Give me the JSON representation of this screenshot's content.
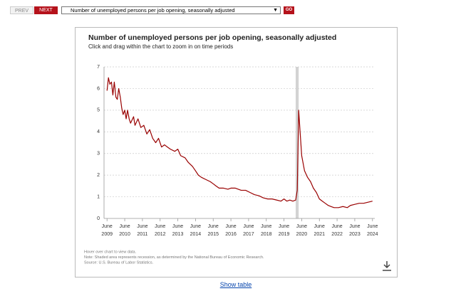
{
  "nav": {
    "prev": "PREV",
    "next": "NEXT",
    "select": "Number of unemployed persons per job opening, seasonally adjusted",
    "go": "GO"
  },
  "chart_data": {
    "type": "line",
    "title": "Number of unemployed persons per job opening, seasonally adjusted",
    "subtitle": "Click and drag within the chart to zoom in on time periods",
    "color": "#990000",
    "x": [
      2009.42,
      2009.5,
      2009.58,
      2009.67,
      2009.75,
      2009.83,
      2009.92,
      2010.0,
      2010.08,
      2010.17,
      2010.25,
      2010.33,
      2010.42,
      2010.5,
      2010.58,
      2010.67,
      2010.75,
      2010.92,
      2011.0,
      2011.17,
      2011.33,
      2011.5,
      2011.67,
      2011.83,
      2012.0,
      2012.17,
      2012.33,
      2012.5,
      2012.67,
      2012.83,
      2013.0,
      2013.25,
      2013.42,
      2013.58,
      2013.83,
      2014.0,
      2014.25,
      2014.42,
      2014.58,
      2014.75,
      2015.0,
      2015.25,
      2015.42,
      2015.58,
      2015.75,
      2016.0,
      2016.25,
      2016.42,
      2016.67,
      2017.0,
      2017.25,
      2017.5,
      2017.75,
      2018.0,
      2018.25,
      2018.5,
      2018.75,
      2019.0,
      2019.25,
      2019.42,
      2019.58,
      2019.75,
      2019.92,
      2020.08,
      2020.17,
      2020.25,
      2020.33,
      2020.42,
      2020.58,
      2020.75,
      2020.92,
      2021.08,
      2021.25,
      2021.42,
      2021.58,
      2021.75,
      2021.92,
      2022.08,
      2022.25,
      2022.5,
      2022.75,
      2023.0,
      2023.17,
      2023.42,
      2023.67,
      2023.92,
      2024.17,
      2024.42
    ],
    "values": [
      5.9,
      6.5,
      6.2,
      6.3,
      5.7,
      6.3,
      5.6,
      5.5,
      6.0,
      5.6,
      5.1,
      4.8,
      5.0,
      4.6,
      5.0,
      4.6,
      4.4,
      4.7,
      4.3,
      4.6,
      4.2,
      4.3,
      3.9,
      4.1,
      3.7,
      3.5,
      3.7,
      3.3,
      3.4,
      3.3,
      3.2,
      3.1,
      3.2,
      2.9,
      2.8,
      2.6,
      2.4,
      2.2,
      2.0,
      1.9,
      1.8,
      1.7,
      1.6,
      1.5,
      1.4,
      1.4,
      1.35,
      1.4,
      1.4,
      1.3,
      1.3,
      1.2,
      1.1,
      1.05,
      0.95,
      0.9,
      0.9,
      0.85,
      0.8,
      0.9,
      0.8,
      0.85,
      0.8,
      0.85,
      1.3,
      5.0,
      4.0,
      2.9,
      2.2,
      1.9,
      1.7,
      1.4,
      1.2,
      0.9,
      0.8,
      0.7,
      0.6,
      0.55,
      0.5,
      0.5,
      0.55,
      0.5,
      0.6,
      0.65,
      0.7,
      0.7,
      0.75,
      0.8
    ],
    "xlim": [
      2009.25,
      2024.55
    ],
    "xticks": [
      {
        "value": 2009.42,
        "label": "June 2009"
      },
      {
        "value": 2010.42,
        "label": "June 2010"
      },
      {
        "value": 2011.42,
        "label": "June 2011"
      },
      {
        "value": 2012.42,
        "label": "June 2012"
      },
      {
        "value": 2013.42,
        "label": "June 2013"
      },
      {
        "value": 2014.42,
        "label": "June 2014"
      },
      {
        "value": 2015.42,
        "label": "June 2015"
      },
      {
        "value": 2016.42,
        "label": "June 2016"
      },
      {
        "value": 2017.42,
        "label": "June 2017"
      },
      {
        "value": 2018.42,
        "label": "June 2018"
      },
      {
        "value": 2019.42,
        "label": "June 2019"
      },
      {
        "value": 2020.42,
        "label": "June 2020"
      },
      {
        "value": 2021.42,
        "label": "June 2021"
      },
      {
        "value": 2022.42,
        "label": "June 2022"
      },
      {
        "value": 2023.42,
        "label": "June 2023"
      },
      {
        "value": 2024.42,
        "label": "June 2024"
      }
    ],
    "ylim": [
      0,
      7
    ],
    "yticks": [
      0,
      1,
      2,
      3,
      4,
      5,
      6,
      7
    ],
    "grid": true,
    "recessions": [
      [
        2020.08,
        2020.25
      ]
    ],
    "notes": [
      "Hover over chart to view data.",
      "Note: Shaded area represents recession, as determined by the National Bureau of Economic Research.",
      "Source: U.S. Bureau of Labor Statistics."
    ]
  },
  "show_table": "Show table"
}
